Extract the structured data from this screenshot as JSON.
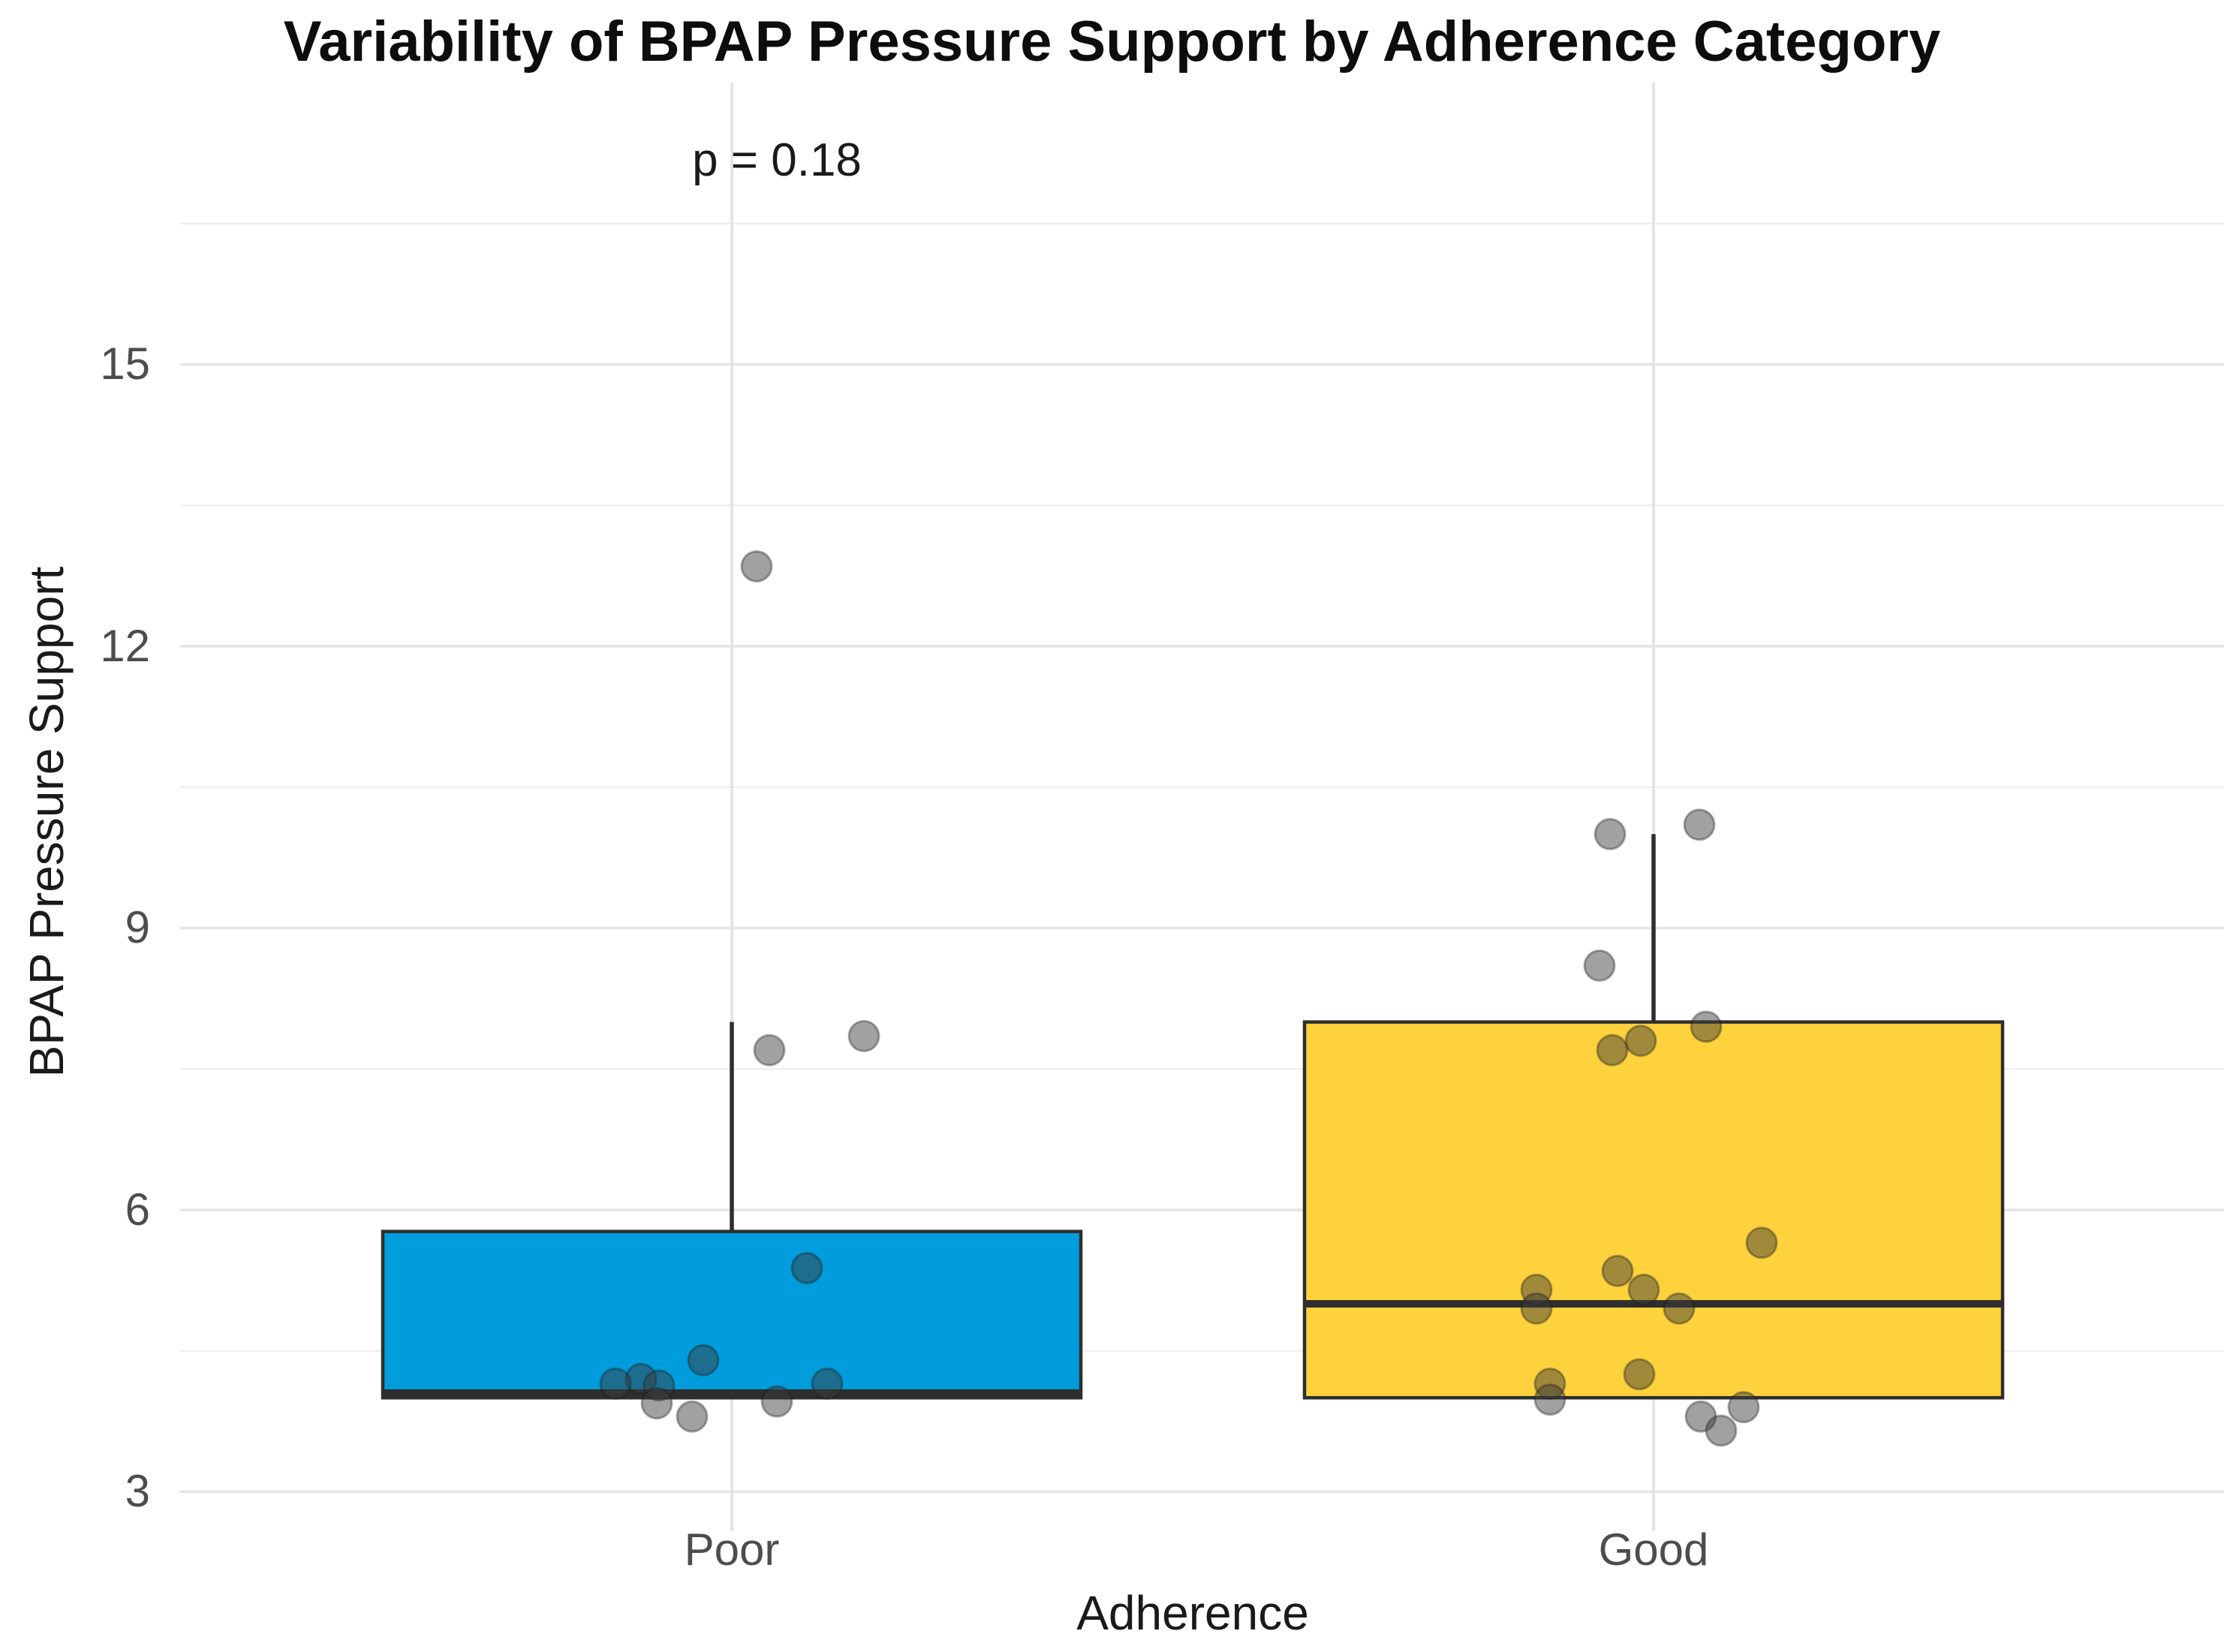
{
  "chart_data": {
    "type": "boxplot",
    "title": "Variability of BPAP Pressure Support by Adherence Category",
    "annotation": "p = 0.18",
    "xlabel": "Adherence",
    "ylabel": "BPAP Pressure Support",
    "categories": [
      "Poor",
      "Good"
    ],
    "y_axis": {
      "ticks_major": [
        3,
        6,
        9,
        12,
        15
      ],
      "ticks_minor": [
        4.5,
        7.5,
        10.5,
        13.5,
        16.5
      ],
      "ylim": [
        2.58,
        18.0
      ],
      "grid": true
    },
    "legend": "none",
    "colors": {
      "poor_fill": "#009CDB",
      "good_fill": "#FDD23C",
      "box_border": "#2E2E2E",
      "grid_major": "#E4E4E4",
      "grid_minor": "#EFEFEF",
      "tick_label": "#4D4D4D",
      "title_color": "#0D0D0D"
    },
    "series": [
      {
        "name": "Poor",
        "fill": "#009CDB",
        "box": {
          "q1": 4.0,
          "median": 4.05,
          "q3": 5.77,
          "whisker_low": null,
          "whisker_high": 8.0
        },
        "points": [
          {
            "v": 12.85,
            "dx": 33
          },
          {
            "v": 7.85,
            "dx": 176
          },
          {
            "v": 7.7,
            "dx": 50
          },
          {
            "v": 5.38,
            "dx": 100
          },
          {
            "v": 4.4,
            "dx": -38
          },
          {
            "v": 4.2,
            "dx": -121
          },
          {
            "v": 4.15,
            "dx": -155
          },
          {
            "v": 4.15,
            "dx": 127
          },
          {
            "v": 4.13,
            "dx": -97
          },
          {
            "v": 3.96,
            "dx": 60
          },
          {
            "v": 3.94,
            "dx": -100
          },
          {
            "v": 3.8,
            "dx": -53
          }
        ]
      },
      {
        "name": "Good",
        "fill": "#FDD23C",
        "box": {
          "q1": 4.0,
          "median": 5.0,
          "q3": 8.0,
          "whisker_low": null,
          "whisker_high": 10.0
        },
        "points": [
          {
            "v": 10.1,
            "dx": 61
          },
          {
            "v": 10.0,
            "dx": -58
          },
          {
            "v": 8.6,
            "dx": -72
          },
          {
            "v": 7.95,
            "dx": 70
          },
          {
            "v": 7.8,
            "dx": -17
          },
          {
            "v": 7.7,
            "dx": -55
          },
          {
            "v": 5.65,
            "dx": 144
          },
          {
            "v": 5.35,
            "dx": -48
          },
          {
            "v": 5.15,
            "dx": -13
          },
          {
            "v": 5.15,
            "dx": -156
          },
          {
            "v": 4.95,
            "dx": -156
          },
          {
            "v": 4.95,
            "dx": 34
          },
          {
            "v": 4.25,
            "dx": -19
          },
          {
            "v": 4.15,
            "dx": -138
          },
          {
            "v": 3.98,
            "dx": -138
          },
          {
            "v": 3.9,
            "dx": 120
          },
          {
            "v": 3.8,
            "dx": 63
          },
          {
            "v": 3.65,
            "dx": 90
          }
        ]
      }
    ]
  }
}
